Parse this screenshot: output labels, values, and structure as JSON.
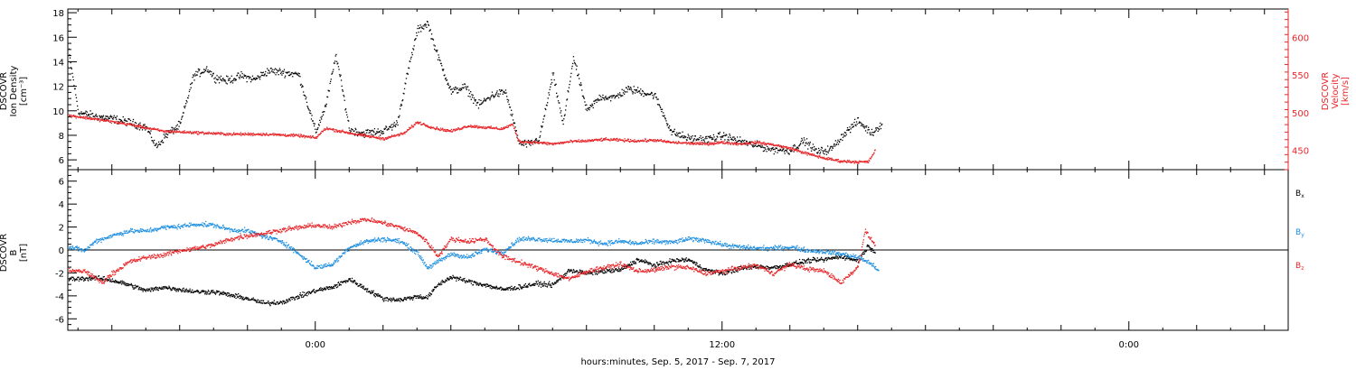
{
  "page": {
    "xaxis_title": "hours:minutes, Sep. 5, 2017 - Sep. 7, 2017"
  },
  "colors": {
    "black": "#000000",
    "red": "#e8262a",
    "blue": "#1f8fe0"
  },
  "chart_data": [
    {
      "type": "scatter",
      "panel": "top",
      "left_axis": {
        "label_lines": [
          "DSCOVR",
          "Ion Density",
          "[cm⁻³]"
        ],
        "ylim": [
          5.2,
          18.3
        ],
        "ticks": [
          6,
          8,
          10,
          12,
          14,
          16,
          18
        ],
        "color": "#000000"
      },
      "right_axis": {
        "label_lines": [
          "DSCOVR",
          "Velocity",
          "[km/s]"
        ],
        "ylim": [
          424,
          638
        ],
        "ticks": [
          450,
          500,
          550,
          600
        ],
        "color": "#e8262a"
      },
      "x_ticks": [
        "0:00",
        "12:00",
        "0:00"
      ],
      "xlim_hours": [
        -7.3,
        28.7
      ],
      "data_extent_hours": [
        -7.3,
        16.7
      ],
      "series": [
        {
          "axis": "left",
          "color": "#000000",
          "x": [
            -7.3,
            -7.0,
            -6.5,
            -6.0,
            -5.5,
            -5.0,
            -4.7,
            -4.4,
            -4.0,
            -3.6,
            -3.2,
            -3.0,
            -2.6,
            -2.2,
            -1.8,
            -1.4,
            -1.0,
            -0.5,
            0.0,
            0.3,
            0.6,
            1.0,
            1.4,
            2.0,
            2.4,
            2.7,
            3.0,
            3.3,
            3.6,
            4.0,
            4.4,
            4.8,
            5.2,
            5.6,
            6.0,
            6.3,
            6.6,
            7.0,
            7.3,
            7.6,
            8.0,
            8.4,
            8.8,
            9.2,
            9.6,
            10.0,
            10.5,
            11.0,
            11.5,
            12.0,
            12.5,
            13.0,
            13.5,
            14.0,
            14.4,
            14.8,
            15.2,
            15.6,
            16.0,
            16.4,
            16.7
          ],
          "y": [
            15.1,
            9.9,
            9.6,
            9.4,
            9.1,
            8.7,
            7.1,
            8.1,
            8.9,
            12.9,
            13.5,
            12.8,
            12.5,
            12.9,
            12.6,
            13.3,
            13.2,
            13.0,
            8.3,
            10.5,
            14.6,
            8.5,
            8.2,
            8.4,
            9.0,
            13.0,
            16.6,
            17.2,
            14.5,
            11.6,
            12.0,
            10.5,
            11.3,
            11.6,
            7.4,
            7.3,
            7.8,
            13.0,
            8.9,
            14.4,
            10.0,
            11.2,
            11.1,
            11.8,
            11.6,
            11.3,
            8.3,
            7.8,
            7.7,
            8.0,
            7.6,
            7.2,
            6.9,
            6.8,
            7.6,
            6.7,
            6.9,
            8.2,
            9.2,
            8.2,
            9.0
          ]
        },
        {
          "axis": "right",
          "color": "#e8262a",
          "x": [
            -7.3,
            -6.5,
            -5.5,
            -4.5,
            -3.5,
            -2.5,
            -1.5,
            -0.5,
            0.0,
            0.3,
            0.6,
            1.3,
            2.0,
            2.6,
            3.0,
            3.5,
            4.0,
            4.5,
            5.0,
            5.5,
            5.8,
            6.0,
            6.5,
            7.0,
            7.5,
            8.0,
            8.5,
            9.0,
            9.5,
            10.0,
            10.5,
            11.0,
            11.5,
            12.0,
            12.5,
            13.0,
            13.5,
            14.0,
            14.5,
            15.0,
            15.5,
            16.0,
            16.3,
            16.5
          ],
          "y": [
            497,
            492,
            485,
            476,
            474,
            472,
            472,
            470,
            467,
            480,
            477,
            471,
            466,
            473,
            488,
            480,
            476,
            483,
            481,
            479,
            485,
            462,
            461,
            459,
            462,
            463,
            465,
            464,
            463,
            464,
            461,
            460,
            459,
            461,
            459,
            461,
            458,
            453,
            446,
            440,
            436,
            435,
            435,
            450
          ]
        }
      ]
    },
    {
      "type": "scatter",
      "panel": "bottom",
      "left_axis": {
        "label_lines": [
          "DSCOVR",
          "B",
          "[nT]"
        ],
        "ylim": [
          -7.0,
          7.0
        ],
        "ticks": [
          -6,
          -4,
          -2,
          0,
          2,
          4,
          6
        ]
      },
      "x_ticks": [
        "0:00",
        "12:00",
        "0:00"
      ],
      "xlim_hours": [
        -7.3,
        28.7
      ],
      "zero_line": true,
      "legend": [
        "Bx",
        "By",
        "Bz"
      ],
      "series": [
        {
          "name": "Bx",
          "color": "#000000",
          "x": [
            -7.3,
            -6.5,
            -6.0,
            -5.5,
            -5.0,
            -4.5,
            -4.0,
            -3.5,
            -3.0,
            -2.5,
            -2.0,
            -1.5,
            -1.0,
            -0.5,
            0.0,
            0.5,
            1.0,
            1.5,
            2.0,
            2.5,
            3.0,
            3.3,
            3.6,
            4.0,
            4.5,
            5.0,
            5.5,
            6.0,
            6.5,
            7.0,
            7.5,
            8.0,
            8.5,
            9.0,
            9.5,
            10.0,
            10.5,
            11.0,
            11.5,
            12.0,
            12.5,
            13.0,
            13.5,
            14.0,
            14.5,
            15.0,
            15.5,
            16.0,
            16.3,
            16.5
          ],
          "y": [
            -2.5,
            -2.4,
            -2.6,
            -3.0,
            -3.5,
            -3.2,
            -3.4,
            -3.6,
            -3.6,
            -3.9,
            -4.2,
            -4.6,
            -4.5,
            -4.0,
            -3.5,
            -3.2,
            -2.5,
            -3.4,
            -4.2,
            -4.3,
            -4.0,
            -4.1,
            -3.0,
            -2.3,
            -2.7,
            -3.0,
            -3.4,
            -3.2,
            -2.9,
            -3.0,
            -1.7,
            -2.0,
            -1.8,
            -1.7,
            -0.8,
            -1.3,
            -0.9,
            -0.8,
            -1.7,
            -2.0,
            -1.6,
            -1.4,
            -1.5,
            -1.2,
            -0.9,
            -0.8,
            -0.5,
            -0.9,
            0.4,
            -0.1
          ]
        },
        {
          "name": "By",
          "color": "#1f8fe0",
          "x": [
            -7.3,
            -6.8,
            -6.5,
            -6.0,
            -5.5,
            -5.0,
            -4.5,
            -4.0,
            -3.5,
            -3.0,
            -2.5,
            -2.0,
            -1.5,
            -1.0,
            -0.5,
            0.0,
            0.5,
            1.0,
            1.5,
            2.0,
            2.5,
            3.0,
            3.3,
            3.6,
            4.0,
            4.5,
            5.0,
            5.5,
            6.0,
            6.5,
            7.0,
            7.5,
            8.0,
            8.5,
            9.0,
            9.5,
            10.0,
            10.5,
            11.0,
            11.5,
            12.0,
            12.5,
            13.0,
            13.5,
            14.0,
            14.5,
            15.0,
            15.5,
            16.0,
            16.3,
            16.6
          ],
          "y": [
            0.3,
            0.0,
            0.8,
            1.3,
            1.7,
            1.7,
            2.0,
            2.1,
            2.3,
            2.2,
            1.8,
            1.7,
            1.2,
            0.8,
            -0.3,
            -1.5,
            -1.2,
            0.3,
            0.8,
            1.0,
            0.8,
            -0.2,
            -1.5,
            -1.0,
            -0.3,
            -0.6,
            0.1,
            -0.2,
            1.0,
            1.0,
            0.9,
            0.8,
            0.9,
            0.6,
            0.8,
            0.6,
            0.8,
            0.7,
            1.0,
            0.9,
            0.5,
            0.3,
            0.2,
            0.2,
            0.3,
            0.0,
            -0.1,
            -0.3,
            -0.6,
            -1.0,
            -1.7
          ]
        },
        {
          "name": "Bz",
          "color": "#e8262a",
          "x": [
            -7.3,
            -6.8,
            -6.3,
            -6.0,
            -5.5,
            -5.0,
            -4.5,
            -4.0,
            -3.5,
            -3.0,
            -2.5,
            -2.0,
            -1.5,
            -1.0,
            -0.5,
            0.0,
            0.5,
            1.0,
            1.5,
            2.0,
            2.5,
            3.0,
            3.3,
            3.6,
            4.0,
            4.5,
            5.0,
            5.5,
            6.0,
            6.5,
            7.0,
            7.5,
            8.0,
            8.5,
            9.0,
            9.5,
            10.0,
            10.5,
            11.0,
            11.5,
            12.0,
            12.5,
            13.0,
            13.5,
            14.0,
            14.5,
            15.0,
            15.5,
            16.0,
            16.2,
            16.5
          ],
          "y": [
            -1.8,
            -1.8,
            -2.8,
            -2.0,
            -1.0,
            -0.6,
            -0.4,
            0.0,
            0.2,
            0.5,
            1.0,
            1.3,
            1.5,
            1.8,
            2.0,
            2.2,
            2.0,
            2.5,
            2.7,
            2.4,
            2.0,
            1.5,
            0.7,
            -0.5,
            1.0,
            0.8,
            1.0,
            -0.5,
            -1.0,
            -1.5,
            -2.0,
            -2.5,
            -1.8,
            -1.5,
            -1.2,
            -1.8,
            -1.7,
            -1.4,
            -1.5,
            -2.0,
            -1.8,
            -1.5,
            -1.3,
            -2.0,
            -1.2,
            -1.6,
            -1.8,
            -2.8,
            -1.4,
            1.7,
            0.5
          ]
        }
      ]
    }
  ]
}
